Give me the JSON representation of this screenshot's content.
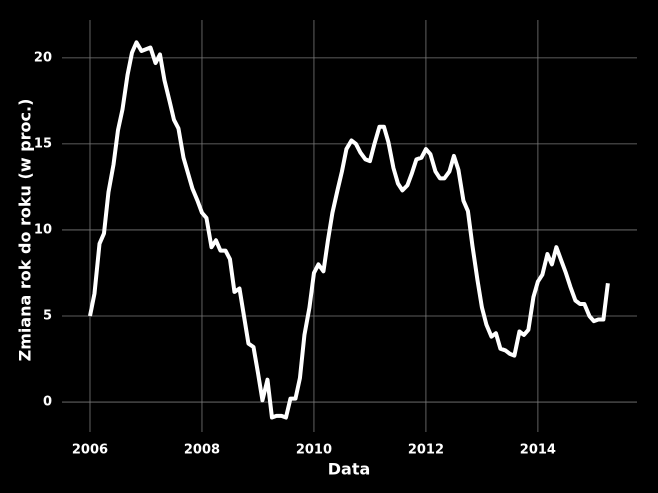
{
  "chart_data": {
    "type": "line",
    "x_label": "Data",
    "y_label": "Zmiana rok do roku (w proc.)",
    "x": [
      2006.0,
      2006.08,
      2006.17,
      2006.25,
      2006.33,
      2006.42,
      2006.5,
      2006.58,
      2006.67,
      2006.75,
      2006.83,
      2006.92,
      2007.0,
      2007.08,
      2007.17,
      2007.25,
      2007.33,
      2007.42,
      2007.5,
      2007.58,
      2007.67,
      2007.75,
      2007.83,
      2007.92,
      2008.0,
      2008.08,
      2008.17,
      2008.25,
      2008.33,
      2008.42,
      2008.5,
      2008.58,
      2008.67,
      2008.75,
      2008.83,
      2008.92,
      2009.0,
      2009.08,
      2009.17,
      2009.25,
      2009.33,
      2009.42,
      2009.5,
      2009.58,
      2009.67,
      2009.75,
      2009.83,
      2009.92,
      2010.0,
      2010.08,
      2010.17,
      2010.25,
      2010.33,
      2010.42,
      2010.5,
      2010.58,
      2010.67,
      2010.75,
      2010.83,
      2010.92,
      2011.0,
      2011.08,
      2011.17,
      2011.25,
      2011.33,
      2011.42,
      2011.5,
      2011.58,
      2011.67,
      2011.75,
      2011.83,
      2011.92,
      2012.0,
      2012.08,
      2012.17,
      2012.25,
      2012.33,
      2012.42,
      2012.5,
      2012.58,
      2012.67,
      2012.75,
      2012.83,
      2012.92,
      2013.0,
      2013.08,
      2013.17,
      2013.25,
      2013.33,
      2013.42,
      2013.5,
      2013.58,
      2013.67,
      2013.75,
      2013.83,
      2013.92,
      2014.0,
      2014.08,
      2014.17,
      2014.25,
      2014.33,
      2014.42,
      2014.5,
      2014.58,
      2014.67,
      2014.75,
      2014.83,
      2014.92,
      2015.0,
      2015.08,
      2015.17,
      2015.25
    ],
    "series": [
      {
        "color": "#ffffff",
        "values": [
          5.0,
          6.3,
          9.2,
          9.8,
          12.2,
          13.8,
          15.8,
          17.0,
          19.0,
          20.3,
          20.9,
          20.4,
          20.5,
          20.6,
          19.7,
          20.2,
          18.7,
          17.5,
          16.4,
          15.9,
          14.2,
          13.3,
          12.4,
          11.7,
          11.0,
          10.7,
          9.0,
          9.4,
          8.8,
          8.8,
          8.3,
          6.4,
          6.6,
          5.0,
          3.4,
          3.2,
          1.7,
          0.1,
          1.3,
          -0.9,
          -0.8,
          -0.8,
          -0.9,
          0.2,
          0.2,
          1.4,
          3.9,
          5.5,
          7.5,
          8.0,
          7.6,
          9.4,
          11.0,
          12.3,
          13.4,
          14.7,
          15.2,
          15.0,
          14.5,
          14.1,
          14.0,
          15.0,
          16.0,
          16.0,
          15.1,
          13.6,
          12.7,
          12.3,
          12.6,
          13.3,
          14.1,
          14.2,
          14.7,
          14.4,
          13.4,
          13.0,
          13.0,
          13.4,
          14.3,
          13.5,
          11.7,
          11.1,
          9.1,
          7.1,
          5.5,
          4.5,
          3.8,
          4.0,
          3.1,
          3.0,
          2.8,
          2.7,
          4.1,
          3.9,
          4.2,
          6.1,
          7.0,
          7.4,
          8.6,
          8.0,
          9.0,
          8.2,
          7.5,
          6.7,
          5.9,
          5.7,
          5.7,
          5.0,
          4.7,
          4.8,
          4.8,
          6.9
        ]
      }
    ],
    "xlim": [
      2005.5,
      2015.77
    ],
    "ylim": [
      -1.74,
      22.2
    ],
    "xticks": [
      2006,
      2008,
      2010,
      2012,
      2014
    ],
    "yticks": [
      0,
      5,
      10,
      15,
      20
    ],
    "grid": true,
    "background": "#000000",
    "grid_color": "#7a7a7a"
  }
}
